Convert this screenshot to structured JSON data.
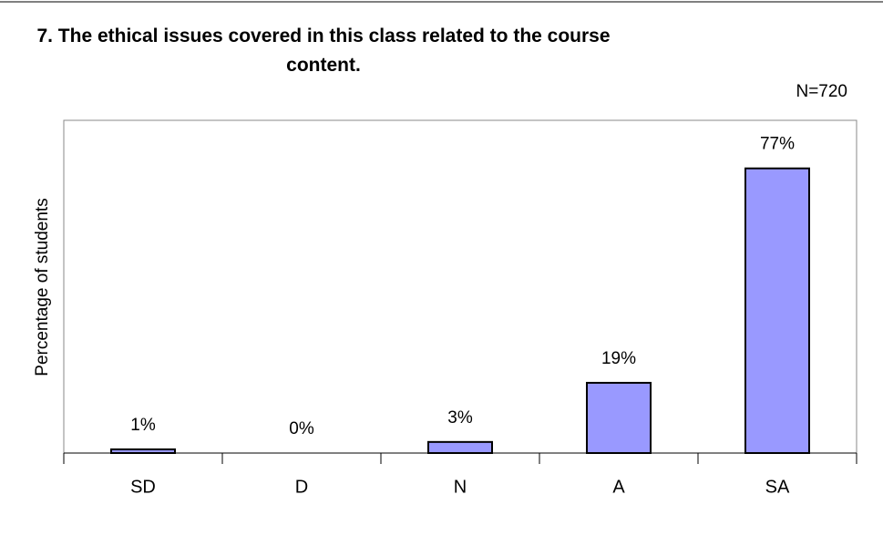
{
  "chart_data": {
    "type": "bar",
    "title": "7. The ethical issues covered in this class related to the course content.",
    "annotation": "N=720",
    "y_label": "Percentage of students",
    "categories": [
      "SD",
      "D",
      "N",
      "A",
      "SA"
    ],
    "values": [
      1,
      0,
      3,
      19,
      77
    ],
    "value_labels": [
      "1%",
      "0%",
      "3%",
      "19%",
      "77%"
    ],
    "color": "#9999ff",
    "ylim": [
      0,
      90
    ]
  }
}
